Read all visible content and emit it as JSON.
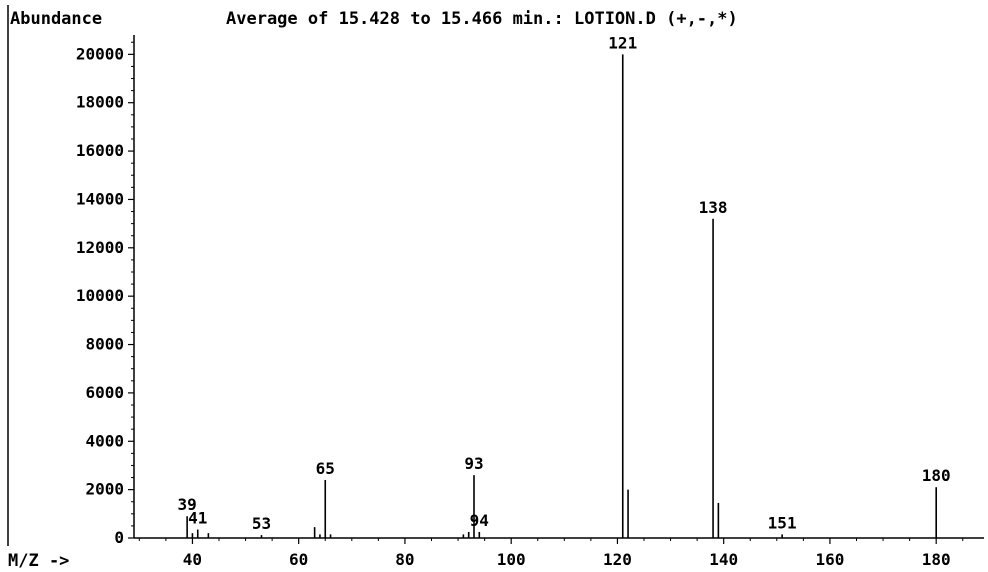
{
  "chart_data": {
    "type": "bar",
    "title": "Average of 15.428 to 15.466 min.: LOTION.D (+,-,*)",
    "ylabel": "Abundance",
    "xlabel": "M/Z ->",
    "xlim": [
      29,
      189
    ],
    "ylim": [
      0,
      20800
    ],
    "xticks": [
      40,
      60,
      80,
      100,
      120,
      140,
      160,
      180
    ],
    "yticks": [
      0,
      2000,
      4000,
      6000,
      8000,
      10000,
      12000,
      14000,
      16000,
      18000,
      20000
    ],
    "grid": false,
    "peaks": [
      {
        "mz": 39,
        "abundance": 900,
        "label": "39"
      },
      {
        "mz": 40,
        "abundance": 200
      },
      {
        "mz": 41,
        "abundance": 350,
        "label": "41"
      },
      {
        "mz": 43,
        "abundance": 200
      },
      {
        "mz": 53,
        "abundance": 120,
        "label": "53"
      },
      {
        "mz": 63,
        "abundance": 450
      },
      {
        "mz": 64,
        "abundance": 150
      },
      {
        "mz": 65,
        "abundance": 2400,
        "label": "65"
      },
      {
        "mz": 66,
        "abundance": 150
      },
      {
        "mz": 91,
        "abundance": 150
      },
      {
        "mz": 92,
        "abundance": 250
      },
      {
        "mz": 93,
        "abundance": 2600,
        "label": "93"
      },
      {
        "mz": 94,
        "abundance": 250,
        "label": "94"
      },
      {
        "mz": 121,
        "abundance": 20000,
        "label": "121"
      },
      {
        "mz": 122,
        "abundance": 2000
      },
      {
        "mz": 138,
        "abundance": 13200,
        "label": "138"
      },
      {
        "mz": 139,
        "abundance": 1450
      },
      {
        "mz": 151,
        "abundance": 150,
        "label": "151"
      },
      {
        "mz": 180,
        "abundance": 2100,
        "label": "180"
      }
    ]
  }
}
